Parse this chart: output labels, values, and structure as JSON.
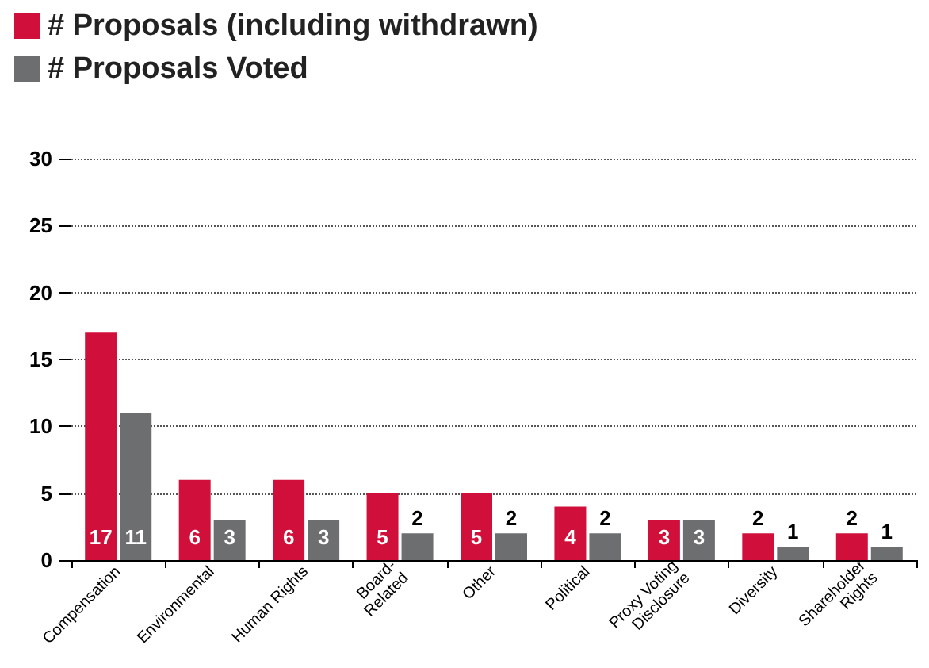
{
  "chart_data": {
    "type": "bar",
    "categories": [
      "Compensation",
      "Environmental",
      "Human Rights",
      "Board-\nRelated",
      "Other",
      "Political",
      "Proxy Voting\nDisclosure",
      "Diversity",
      "Shareholder\nRights"
    ],
    "series": [
      {
        "name": "# Proposals (including withdrawn)",
        "color": "#d0103a",
        "values": [
          17,
          6,
          6,
          5,
          5,
          4,
          3,
          2,
          2
        ]
      },
      {
        "name": "# Proposals Voted",
        "color": "#6d6e70",
        "values": [
          11,
          3,
          3,
          2,
          2,
          2,
          3,
          1,
          1
        ]
      }
    ],
    "ylim": [
      0,
      30
    ],
    "yticks": [
      0,
      5,
      10,
      15,
      20,
      25,
      30
    ],
    "grid": "y",
    "legend": "top left",
    "data_labels": true
  }
}
